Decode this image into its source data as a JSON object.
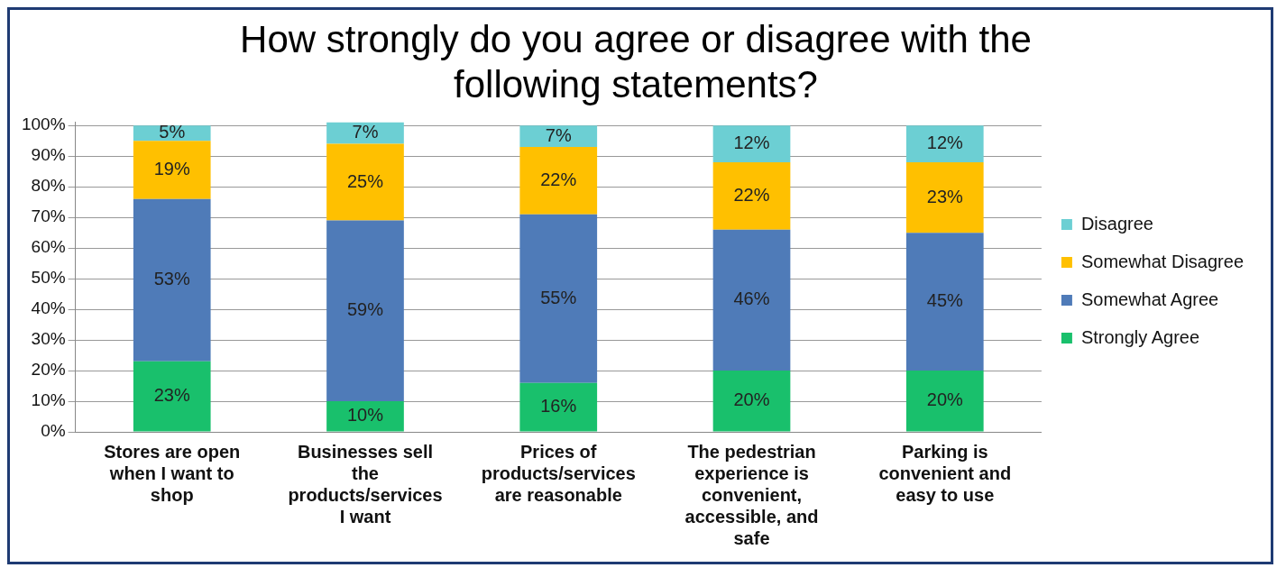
{
  "chart_data": {
    "type": "bar",
    "title": "How strongly do you agree or disagree with the following statements?",
    "categories": [
      "Stores are open when I want to shop",
      "Businesses sell the products/services I want",
      "Prices of products/services are reasonable",
      "The pedestrian experience is convenient, accessible, and safe",
      "Parking is convenient and easy to use"
    ],
    "stacked": true,
    "series": [
      {
        "name": "Strongly Agree",
        "color": "#19c06c",
        "values": [
          23,
          10,
          16,
          20,
          20
        ],
        "value_labels": [
          "23%",
          "10%",
          "16%",
          "20%",
          "20%"
        ]
      },
      {
        "name": "Somewhat Agree",
        "color": "#4f7bb8",
        "values": [
          53,
          59,
          55,
          46,
          45
        ],
        "value_labels": [
          "53%",
          "59%",
          "55%",
          "46%",
          "45%"
        ]
      },
      {
        "name": "Somewhat Disagree",
        "color": "#ffc000",
        "values": [
          19,
          25,
          22,
          22,
          23
        ],
        "value_labels": [
          "19%",
          "25%",
          "22%",
          "22%",
          "23%"
        ]
      },
      {
        "name": "Disagree",
        "color": "#6ccfd3",
        "values": [
          5,
          7,
          7,
          12,
          12
        ],
        "value_labels": [
          "5%",
          "7%",
          "7%",
          "12%",
          "12%"
        ]
      }
    ],
    "ylim": [
      0,
      101
    ],
    "yticks": [
      {
        "value": 0,
        "label": "0%"
      },
      {
        "value": 10,
        "label": "10%"
      },
      {
        "value": 20,
        "label": "20%"
      },
      {
        "value": 30,
        "label": "30%"
      },
      {
        "value": 40,
        "label": "40%"
      },
      {
        "value": 50,
        "label": "50%"
      },
      {
        "value": 60,
        "label": "60%"
      },
      {
        "value": 70,
        "label": "70%"
      },
      {
        "value": 80,
        "label": "80%"
      },
      {
        "value": 90,
        "label": "90%"
      },
      {
        "value": 100,
        "label": "100%"
      }
    ],
    "grid": "y",
    "legend": "right"
  }
}
